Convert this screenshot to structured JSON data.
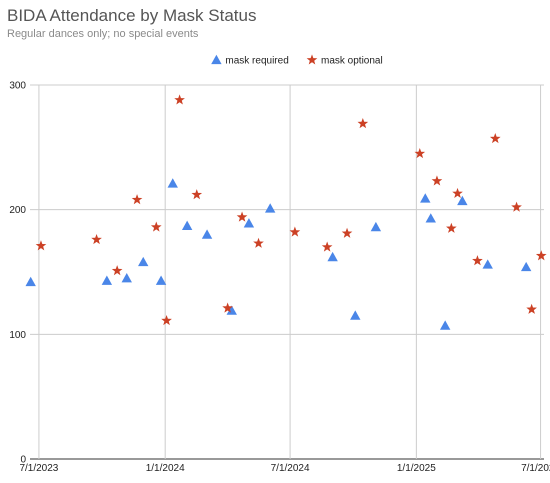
{
  "chart_data": {
    "type": "scatter",
    "title": "BIDA Attendance by Mask Status",
    "subtitle": "Regular dances only; no special events",
    "xlabel": "",
    "ylabel": "",
    "x_axis": {
      "min": "2023-06-18",
      "max": "2025-07-06",
      "ticks": [
        "7/1/2023",
        "1/1/2024",
        "7/1/2024",
        "1/1/2025",
        "7/1/2025"
      ]
    },
    "ylim": [
      0,
      300
    ],
    "y_ticks": [
      "0",
      "100",
      "200",
      "300"
    ],
    "grid": true,
    "legend_position": "top",
    "series": [
      {
        "name": "mask required",
        "marker": "triangle",
        "color": "#4a86e8",
        "points": [
          {
            "x": "2023-06-19",
            "y": 142
          },
          {
            "x": "2023-10-08",
            "y": 143
          },
          {
            "x": "2023-11-06",
            "y": 145
          },
          {
            "x": "2023-11-30",
            "y": 158
          },
          {
            "x": "2023-12-26",
            "y": 143
          },
          {
            "x": "2024-01-12",
            "y": 221
          },
          {
            "x": "2024-02-02",
            "y": 187
          },
          {
            "x": "2024-03-02",
            "y": 180
          },
          {
            "x": "2024-04-07",
            "y": 119
          },
          {
            "x": "2024-05-02",
            "y": 189
          },
          {
            "x": "2024-06-02",
            "y": 201
          },
          {
            "x": "2024-09-01",
            "y": 162
          },
          {
            "x": "2024-10-04",
            "y": 115
          },
          {
            "x": "2024-11-03",
            "y": 186
          },
          {
            "x": "2025-01-14",
            "y": 209
          },
          {
            "x": "2025-01-22",
            "y": 193
          },
          {
            "x": "2025-02-12",
            "y": 107
          },
          {
            "x": "2025-03-09",
            "y": 207
          },
          {
            "x": "2025-04-15",
            "y": 156
          },
          {
            "x": "2025-06-10",
            "y": 154
          }
        ]
      },
      {
        "name": "mask optional",
        "marker": "star",
        "color": "#cc4125",
        "points": [
          {
            "x": "2023-07-04",
            "y": 171
          },
          {
            "x": "2023-09-23",
            "y": 176
          },
          {
            "x": "2023-10-23",
            "y": 151
          },
          {
            "x": "2023-11-21",
            "y": 208
          },
          {
            "x": "2023-12-19",
            "y": 186
          },
          {
            "x": "2024-01-03",
            "y": 111
          },
          {
            "x": "2024-01-22",
            "y": 288
          },
          {
            "x": "2024-02-16",
            "y": 212
          },
          {
            "x": "2024-04-01",
            "y": 121
          },
          {
            "x": "2024-04-22",
            "y": 194
          },
          {
            "x": "2024-05-16",
            "y": 173
          },
          {
            "x": "2024-07-08",
            "y": 182
          },
          {
            "x": "2024-08-24",
            "y": 170
          },
          {
            "x": "2024-09-22",
            "y": 181
          },
          {
            "x": "2024-10-15",
            "y": 269
          },
          {
            "x": "2025-01-06",
            "y": 245
          },
          {
            "x": "2025-01-31",
            "y": 223
          },
          {
            "x": "2025-02-21",
            "y": 185
          },
          {
            "x": "2025-03-02",
            "y": 213
          },
          {
            "x": "2025-03-31",
            "y": 159
          },
          {
            "x": "2025-04-26",
            "y": 257
          },
          {
            "x": "2025-05-27",
            "y": 202
          },
          {
            "x": "2025-06-18",
            "y": 120
          },
          {
            "x": "2025-07-02",
            "y": 163
          }
        ]
      }
    ]
  }
}
